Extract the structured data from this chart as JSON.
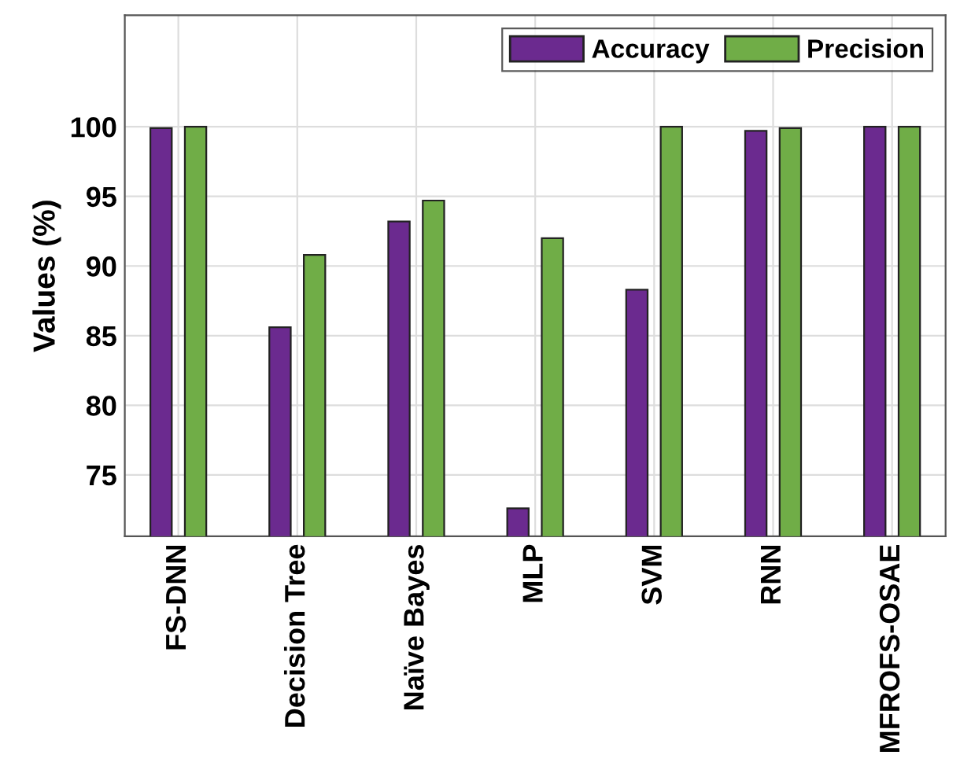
{
  "chart_data": {
    "type": "bar",
    "ylabel": "Values (%)",
    "categories": [
      "FS-DNN",
      "Decision Tree",
      "Naïve Bayes",
      "MLP",
      "SVM",
      "RNN",
      "MFROFS-OSAE"
    ],
    "series": [
      {
        "name": "Accuracy",
        "color": "#6b2a8f",
        "values": [
          99.9,
          85.6,
          93.2,
          72.6,
          88.3,
          99.7,
          100
        ]
      },
      {
        "name": "Precision",
        "color": "#70ad47",
        "values": [
          100,
          90.8,
          94.7,
          92.0,
          100,
          99.9,
          100
        ]
      }
    ],
    "ylim": [
      70.6,
      108
    ],
    "yticks": [
      75,
      80,
      85,
      90,
      95,
      100
    ],
    "grid": true,
    "legend": "top right"
  }
}
